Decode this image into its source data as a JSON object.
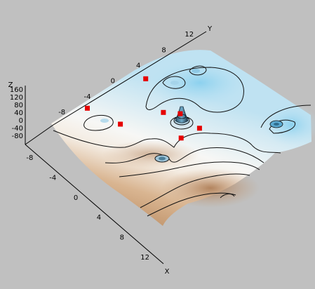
{
  "chart_data": {
    "type": "surface3d",
    "title": "",
    "axes": {
      "x": {
        "label": "X",
        "ticks": [
          "-8",
          "-4",
          "0",
          "4",
          "8",
          "12"
        ],
        "range": [
          -12,
          12
        ]
      },
      "y": {
        "label": "Y",
        "ticks": [
          "-8",
          "-4",
          "0",
          "4",
          "8",
          "12"
        ],
        "range": [
          -12,
          12
        ]
      },
      "z": {
        "label": "Z",
        "ticks": [
          "160",
          "120",
          "80",
          "40",
          "0",
          "-40",
          "-80"
        ],
        "range": [
          -80,
          160
        ]
      }
    },
    "colormap": {
      "low": "#b5865c",
      "mid": "#f6f6f4",
      "high": "#7fcbea"
    },
    "markers": {
      "color": "#e60000",
      "points": [
        {
          "x": -9,
          "y": -2,
          "z": 20
        },
        {
          "x": -2,
          "y": 1,
          "z": 15
        },
        {
          "x": 0,
          "y": 6,
          "z": 140
        },
        {
          "x": 2,
          "y": 9,
          "z": 30
        },
        {
          "x": 5,
          "y": 11,
          "z": 40
        },
        {
          "x": 9,
          "y": 8,
          "z": 25
        },
        {
          "x": 10,
          "y": 12,
          "z": 35
        }
      ]
    }
  }
}
